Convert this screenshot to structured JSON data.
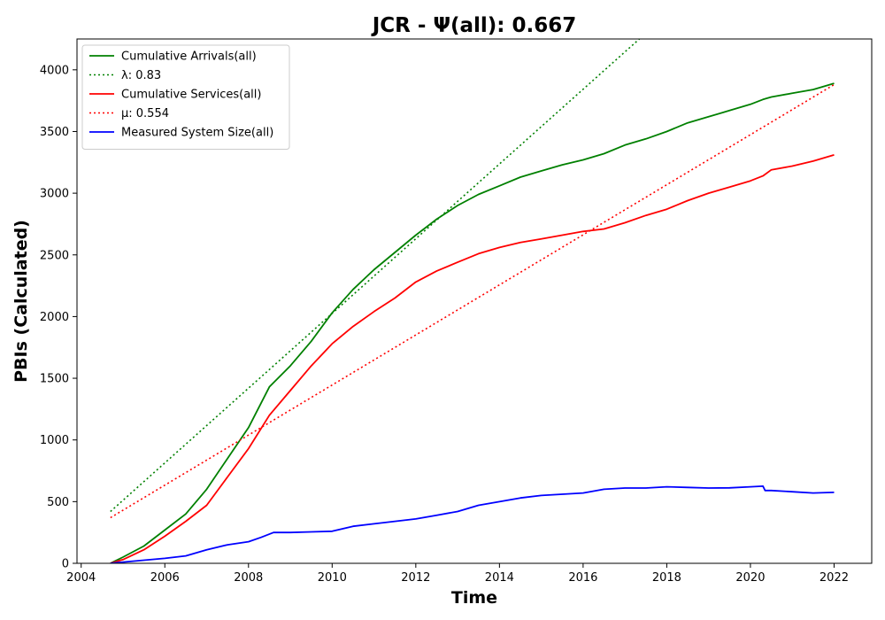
{
  "chart_data": {
    "type": "line",
    "title": "JCR -  Ψ(all): 0.667",
    "xlabel": "Time",
    "ylabel": "PBIs (Calculated)",
    "xlim": [
      2003.9,
      2022.9
    ],
    "ylim": [
      0,
      4250
    ],
    "x_ticks": [
      2004,
      2006,
      2008,
      2010,
      2012,
      2014,
      2016,
      2018,
      2020,
      2022
    ],
    "y_ticks": [
      0,
      500,
      1000,
      1500,
      2000,
      2500,
      3000,
      3500,
      4000
    ],
    "grid": false,
    "legend_position": "top-left",
    "series": [
      {
        "name": "Cumulative Arrivals(all)",
        "style": "solid",
        "color": "#008000",
        "x": [
          2004.7,
          2005.0,
          2005.5,
          2006.0,
          2006.5,
          2007.0,
          2007.5,
          2008.0,
          2008.5,
          2009.0,
          2009.5,
          2010.0,
          2010.5,
          2011.0,
          2011.5,
          2012.0,
          2012.5,
          2013.0,
          2013.5,
          2014.0,
          2014.5,
          2015.0,
          2015.5,
          2016.0,
          2016.5,
          2017.0,
          2017.5,
          2018.0,
          2018.5,
          2019.0,
          2019.5,
          2020.0,
          2020.3,
          2020.5,
          2021.0,
          2021.5,
          2022.0
        ],
        "y": [
          0,
          50,
          140,
          270,
          400,
          600,
          850,
          1100,
          1430,
          1600,
          1800,
          2030,
          2220,
          2380,
          2520,
          2660,
          2790,
          2900,
          2990,
          3060,
          3130,
          3180,
          3230,
          3270,
          3320,
          3390,
          3440,
          3500,
          3570,
          3620,
          3670,
          3720,
          3760,
          3780,
          3810,
          3840,
          3890
        ]
      },
      {
        "name": "λ: 0.83",
        "style": "dotted",
        "color": "#008000",
        "x": [
          2004.7,
          2022.0
        ],
        "y": [
          420,
          5660
        ]
      },
      {
        "name": "Cumulative Services(all)",
        "style": "solid",
        "color": "#ff0000",
        "x": [
          2004.7,
          2005.0,
          2005.5,
          2006.0,
          2006.5,
          2007.0,
          2007.5,
          2008.0,
          2008.5,
          2009.0,
          2009.5,
          2010.0,
          2010.5,
          2011.0,
          2011.5,
          2012.0,
          2012.5,
          2013.0,
          2013.5,
          2014.0,
          2014.5,
          2015.0,
          2015.5,
          2016.0,
          2016.5,
          2017.0,
          2017.5,
          2018.0,
          2018.5,
          2019.0,
          2019.5,
          2020.0,
          2020.3,
          2020.5,
          2021.0,
          2021.5,
          2022.0
        ],
        "y": [
          0,
          30,
          110,
          220,
          340,
          470,
          700,
          930,
          1200,
          1400,
          1600,
          1780,
          1920,
          2040,
          2150,
          2280,
          2370,
          2440,
          2510,
          2560,
          2600,
          2630,
          2660,
          2690,
          2710,
          2760,
          2820,
          2870,
          2940,
          3000,
          3050,
          3100,
          3140,
          3190,
          3220,
          3260,
          3310
        ]
      },
      {
        "name": "μ: 0.554",
        "style": "dotted",
        "color": "#ff0000",
        "x": [
          2004.7,
          2022.0
        ],
        "y": [
          370,
          3880
        ]
      },
      {
        "name": "Measured System Size(all)",
        "style": "solid",
        "color": "#0000ff",
        "x": [
          2004.7,
          2005.0,
          2005.5,
          2006.0,
          2006.5,
          2007.0,
          2007.5,
          2008.0,
          2008.3,
          2008.6,
          2009.0,
          2009.5,
          2010.0,
          2010.5,
          2011.0,
          2011.5,
          2012.0,
          2012.5,
          2013.0,
          2013.5,
          2014.0,
          2014.5,
          2015.0,
          2015.5,
          2016.0,
          2016.5,
          2017.0,
          2017.5,
          2018.0,
          2018.5,
          2019.0,
          2019.5,
          2020.0,
          2020.3,
          2020.35,
          2020.5,
          2021.0,
          2021.5,
          2022.0
        ],
        "y": [
          0,
          10,
          25,
          40,
          60,
          110,
          150,
          175,
          210,
          250,
          250,
          255,
          260,
          300,
          320,
          340,
          360,
          390,
          420,
          470,
          500,
          530,
          550,
          560,
          570,
          600,
          610,
          610,
          620,
          615,
          610,
          612,
          620,
          625,
          590,
          590,
          580,
          570,
          575
        ]
      }
    ]
  }
}
